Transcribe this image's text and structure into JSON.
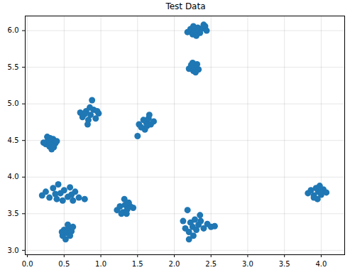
{
  "chart_data": {
    "type": "scatter",
    "title": "Test Data",
    "color": "#1f77b4",
    "marker": "o",
    "grid": true,
    "xlim": [
      -0.03,
      4.32
    ],
    "ylim": [
      2.94,
      6.2
    ],
    "xticks": [
      {
        "value": 0,
        "label": "0.0"
      },
      0.5,
      {
        "value": 1,
        "label": "1.0"
      },
      1.5,
      {
        "value": 2,
        "label": "2.0"
      },
      2.5,
      {
        "value": 3,
        "label": "3.0"
      },
      3.5,
      {
        "value": 4,
        "label": "4.0"
      }
    ],
    "yticks": [
      {
        "value": 3,
        "label": "3.0"
      },
      3.5,
      {
        "value": 4,
        "label": "4.0"
      },
      4.5,
      {
        "value": 5,
        "label": "5.0"
      },
      5.5,
      {
        "value": 6,
        "label": "6.0"
      }
    ],
    "x": [
      0.25,
      0.28,
      0.3,
      0.32,
      0.35,
      0.38,
      0.33,
      0.27,
      0.4,
      0.22,
      0.31,
      0.36,
      0.2,
      0.25,
      0.3,
      0.35,
      0.4,
      0.45,
      0.5,
      0.55,
      0.6,
      0.65,
      0.42,
      0.48,
      0.7,
      0.78,
      0.38,
      0.58,
      0.62,
      0.48,
      0.5,
      0.53,
      0.56,
      0.6,
      0.58,
      0.52,
      0.62,
      0.55,
      0.47,
      0.72,
      0.75,
      0.8,
      0.83,
      0.86,
      0.9,
      0.93,
      0.97,
      0.88,
      0.82,
      0.78,
      0.95,
      0.85,
      1.22,
      1.26,
      1.3,
      1.33,
      1.36,
      1.4,
      1.44,
      1.32,
      1.28,
      1.38,
      1.35,
      1.52,
      1.55,
      1.58,
      1.62,
      1.65,
      1.68,
      1.72,
      1.6,
      1.5,
      1.66,
      1.63,
      2.18,
      2.22,
      2.25,
      2.28,
      2.32,
      2.35,
      2.38,
      2.42,
      2.44,
      2.3,
      2.4,
      2.26,
      2.2,
      2.23,
      2.26,
      2.28,
      2.31,
      2.33,
      2.25,
      2.29,
      2.15,
      2.2,
      2.22,
      2.25,
      2.28,
      2.3,
      2.33,
      2.36,
      2.4,
      2.45,
      2.5,
      2.2,
      2.26,
      2.18,
      2.35,
      2.55,
      2.12,
      3.82,
      3.86,
      3.9,
      3.93,
      3.96,
      4.0,
      4.03,
      4.07,
      3.95,
      3.98,
      3.9,
      4.0
    ],
    "y": [
      4.45,
      4.5,
      4.42,
      4.47,
      4.52,
      4.46,
      4.38,
      4.55,
      4.49,
      4.47,
      4.53,
      4.41,
      3.75,
      3.8,
      3.72,
      3.85,
      3.7,
      3.78,
      3.82,
      3.73,
      3.76,
      3.8,
      3.9,
      3.68,
      3.72,
      3.7,
      3.77,
      3.86,
      3.68,
      3.2,
      3.28,
      3.24,
      3.3,
      3.26,
      3.2,
      3.15,
      3.32,
      3.35,
      3.25,
      4.88,
      4.82,
      4.9,
      4.78,
      4.85,
      4.92,
      4.8,
      4.87,
      5.05,
      4.72,
      4.86,
      4.9,
      4.95,
      3.55,
      3.6,
      3.52,
      3.62,
      3.56,
      3.6,
      3.58,
      3.7,
      3.5,
      3.65,
      3.5,
      4.72,
      4.68,
      4.78,
      4.74,
      4.8,
      4.72,
      4.76,
      4.65,
      4.56,
      4.85,
      4.7,
      5.98,
      6.02,
      5.95,
      6.0,
      6.04,
      5.97,
      6.03,
      6.06,
      6.0,
      5.93,
      6.08,
      6.06,
      5.48,
      5.53,
      5.45,
      5.5,
      5.54,
      5.47,
      5.56,
      5.43,
      3.3,
      3.25,
      3.38,
      3.32,
      3.42,
      3.28,
      3.35,
      3.4,
      3.3,
      3.36,
      3.32,
      3.15,
      3.2,
      3.55,
      3.48,
      3.33,
      3.4,
      3.78,
      3.82,
      3.75,
      3.85,
      3.8,
      3.76,
      3.83,
      3.79,
      3.7,
      3.88,
      3.72,
      3.8
    ]
  }
}
